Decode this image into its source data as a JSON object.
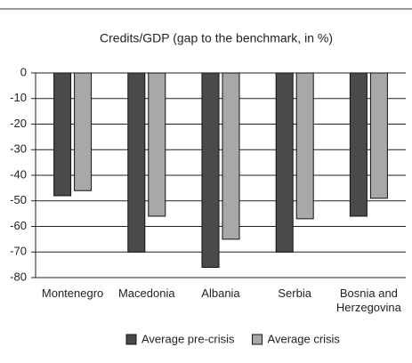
{
  "chart_data": {
    "type": "bar",
    "title": "Credits/GDP (gap to the benchmark, in %)",
    "categories": [
      "Montenegro",
      "Macedonia",
      "Albania",
      "Serbia",
      "Bosnia and Herzegovina"
    ],
    "series": [
      {
        "name": "Average pre-crisis",
        "color": "#4a4a4a",
        "values": [
          -48,
          -70,
          -76,
          -70,
          -56
        ]
      },
      {
        "name": "Average crisis",
        "color": "#a8a8a8",
        "values": [
          -46,
          -56,
          -65,
          -57,
          -49
        ]
      }
    ],
    "ylim": [
      -80,
      0
    ],
    "yticks": [
      0,
      -10,
      -20,
      -30,
      -40,
      -50,
      -60,
      -70,
      -80
    ],
    "grid": true,
    "legend": "bottom"
  }
}
